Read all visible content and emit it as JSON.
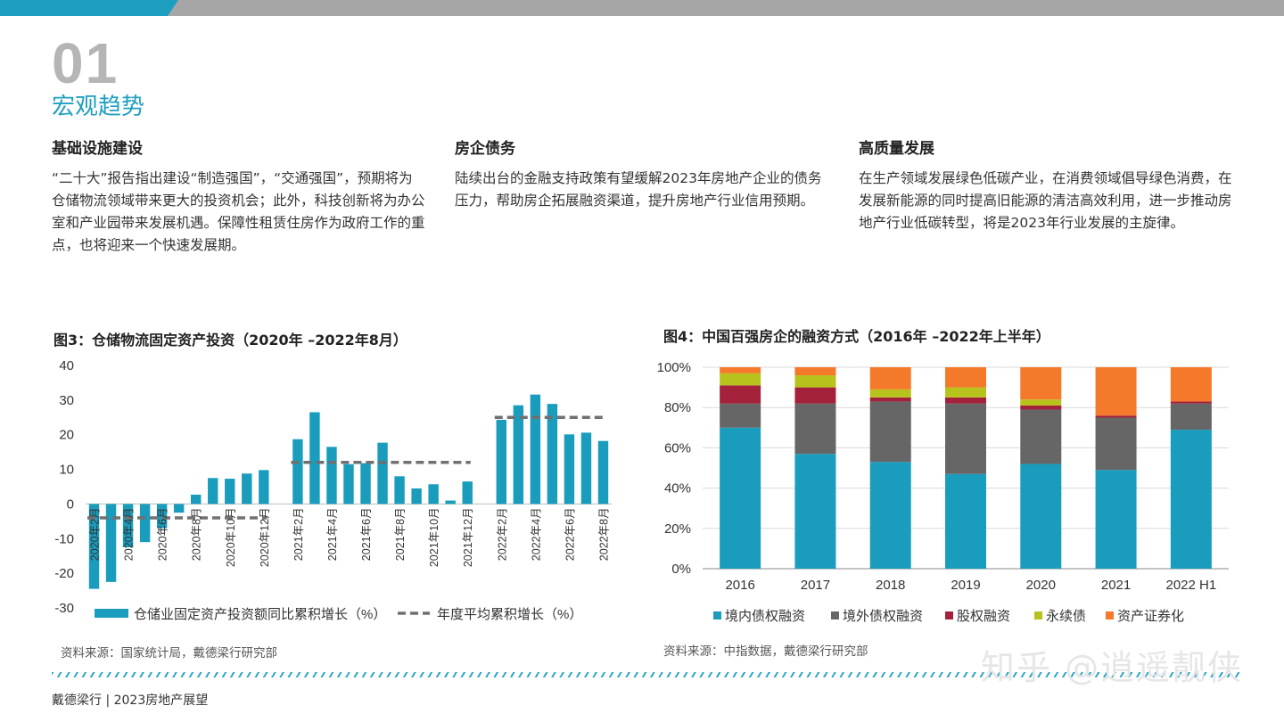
{
  "header": {
    "section_number": "01",
    "section_title": "宏观趋势"
  },
  "columns": [
    {
      "heading": "基础设施建设",
      "body": "“二十大”报告指出建设“制造强国”，“交通强国”，预期将为仓储物流领域带来更大的投资机会；此外，科技创新将为办公室和产业园带来发展机遇。保障性租赁住房作为政府工作的重点，也将迎来一个快速发展期。"
    },
    {
      "heading": "房企债务",
      "body": "陆续出台的金融支持政策有望缓解2023年房地产企业的债务压力，帮助房企拓展融资渠道，提升房地产行业信用预期。"
    },
    {
      "heading": "高质量发展",
      "body": "在生产领域发展绿色低碳产业，在消费领域倡导绿色消费，在发展新能源的同时提高旧能源的清洁高效利用，进一步推动房地产行业低碳转型，将是2023年行业发展的主旋律。"
    }
  ],
  "figures": {
    "fig3": {
      "title": "图3：仓储物流固定资产投资（2020年 –2022年8月）",
      "source": "资料来源：国家统计局，戴德梁行研究部"
    },
    "fig4": {
      "title": "图4：中国百强房企的融资方式（2016年 –2022年上半年）",
      "source": "资料来源：中指数据，戴德梁行研究部"
    }
  },
  "chart_data": [
    {
      "type": "bar",
      "title": "图3：仓储物流固定资产投资（2020年 –2022年8月）",
      "ylim": [
        -30,
        40
      ],
      "yticks": [
        40,
        30,
        20,
        10,
        0,
        -10,
        -20,
        -30
      ],
      "grid": false,
      "legend_position": "bottom",
      "x_tick_labels": [
        "2020年2月",
        "2020年4月",
        "2020年6月",
        "2020年8月",
        "2020年10月",
        "2020年12月",
        "2021年2月",
        "2021年4月",
        "2021年6月",
        "2021年8月",
        "2021年10月",
        "2021年12月",
        "2022年2月",
        "2022年4月",
        "2022年6月",
        "2022年8月"
      ],
      "groups": [
        {
          "year": "2020",
          "months": [
            2,
            3,
            4,
            5,
            6,
            7,
            8,
            9,
            10,
            11,
            12
          ],
          "values": [
            -24.5,
            -22.5,
            -12.5,
            -11,
            -7,
            -2.5,
            2.7,
            7.5,
            7.3,
            8.8,
            9.8
          ],
          "avg": -4
        },
        {
          "year": "2021",
          "months": [
            2,
            3,
            4,
            5,
            6,
            7,
            8,
            9,
            10,
            11,
            12
          ],
          "values": [
            18.7,
            26.5,
            16.5,
            11.5,
            11.8,
            17.7,
            8,
            4.5,
            5.7,
            1,
            6.5
          ],
          "avg": 12
        },
        {
          "year": "2022",
          "months": [
            2,
            3,
            4,
            5,
            6,
            7,
            8
          ],
          "values": [
            24.3,
            28.5,
            31.6,
            28.9,
            20.1,
            20.6,
            18.2
          ],
          "avg": 25
        }
      ],
      "series": [
        {
          "name": "仓储业固定资产投资额同比累积增长（%）",
          "color": "#1a9dbd"
        },
        {
          "name": "年度平均累积增长（%）",
          "color": "#707070"
        }
      ]
    },
    {
      "type": "bar",
      "stacked": true,
      "title": "图4：中国百强房企的融资方式（2016年 –2022年上半年）",
      "categories": [
        "2016",
        "2017",
        "2018",
        "2019",
        "2020",
        "2021",
        "2022 H1"
      ],
      "ylim": [
        0,
        100
      ],
      "yticks": [
        "0%",
        "20%",
        "40%",
        "60%",
        "80%",
        "100%"
      ],
      "grid": true,
      "legend_position": "bottom",
      "series": [
        {
          "name": "境内债权融资",
          "color": "#1a9dbd",
          "values": [
            70,
            57,
            53,
            47,
            52,
            49,
            69
          ]
        },
        {
          "name": "境外债权融资",
          "color": "#666666",
          "values": [
            12,
            25,
            30,
            35,
            27,
            26,
            13
          ]
        },
        {
          "name": "股权融资",
          "color": "#a3213a",
          "values": [
            9,
            8,
            2,
            3,
            2,
            1,
            1
          ]
        },
        {
          "name": "永续债",
          "color": "#b7c31c",
          "values": [
            6,
            6,
            4,
            5,
            3,
            0,
            0
          ]
        },
        {
          "name": "资产证券化",
          "color": "#f5792a",
          "values": [
            3,
            4,
            11,
            10,
            16,
            24,
            17
          ]
        }
      ]
    }
  ],
  "footer": {
    "text": "戴德梁行 | 2023房地产展望"
  },
  "watermark": {
    "text": "知乎 @逍遥靓侠"
  }
}
